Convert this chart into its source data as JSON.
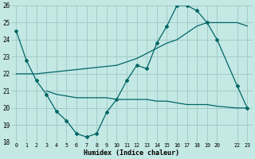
{
  "bg_color": "#c4e8e4",
  "grid_color": "#a4ccc8",
  "line_color": "#006666",
  "line1_x": [
    0,
    1,
    2,
    3,
    4,
    5,
    6,
    7,
    8,
    9,
    10,
    11,
    12,
    13,
    14,
    15,
    16,
    17,
    18,
    19,
    20,
    22,
    23
  ],
  "line1_y": [
    24.5,
    22.8,
    21.6,
    20.8,
    19.8,
    19.25,
    18.5,
    18.3,
    18.5,
    19.75,
    20.5,
    21.6,
    22.5,
    22.3,
    23.8,
    24.8,
    26.0,
    26.0,
    25.7,
    25.0,
    24.0,
    21.3,
    20.0
  ],
  "line2_x": [
    0,
    2,
    10,
    11,
    12,
    13,
    14,
    15,
    16,
    17,
    18,
    19,
    20,
    22,
    23
  ],
  "line2_y": [
    22.0,
    22.0,
    22.5,
    22.7,
    22.9,
    23.2,
    23.5,
    23.8,
    24.0,
    24.4,
    24.8,
    25.0,
    25.0,
    25.0,
    24.8
  ],
  "line3_x": [
    3,
    4,
    5,
    6,
    7,
    8,
    9,
    10,
    11,
    12,
    13,
    14,
    15,
    16,
    17,
    18,
    19,
    20,
    22,
    23
  ],
  "line3_y": [
    21.0,
    20.8,
    20.7,
    20.6,
    20.6,
    20.6,
    20.6,
    20.5,
    20.5,
    20.5,
    20.5,
    20.4,
    20.4,
    20.3,
    20.2,
    20.2,
    20.2,
    20.1,
    20.0,
    20.0
  ],
  "xlabel": "Humidex (Indice chaleur)",
  "ylim": [
    18,
    26
  ],
  "xlim_min": -0.5,
  "xlim_max": 23.5,
  "xtick_positions": [
    0,
    1,
    2,
    3,
    4,
    5,
    6,
    7,
    8,
    9,
    10,
    11,
    12,
    13,
    14,
    15,
    16,
    17,
    18,
    19,
    20,
    22,
    23
  ],
  "xtick_labels": [
    "0",
    "1",
    "2",
    "3",
    "4",
    "5",
    "6",
    "7",
    "8",
    "9",
    "10",
    "11",
    "12",
    "13",
    "14",
    "15",
    "16",
    "17",
    "18",
    "19",
    "20",
    "22",
    "23"
  ],
  "yticks": [
    18,
    19,
    20,
    21,
    22,
    23,
    24,
    25,
    26
  ]
}
